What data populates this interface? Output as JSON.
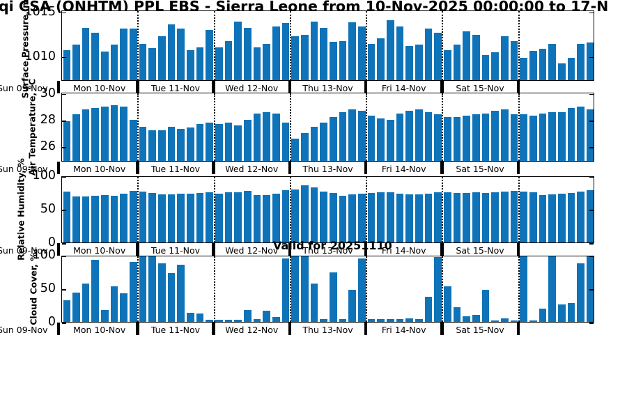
{
  "title": "qi CSA (ONHTM) PPL EBS  - Sierra Leone from 10-Nov-2025 00:00:00 to 17-N",
  "valid_for": "Valid for 20251110",
  "bar_color": "#0e73b8",
  "x_axis": {
    "left_label": "Sun 09-Nov",
    "day_labels": [
      "Mon 10-Nov",
      "Tue 11-Nov",
      "Wed 12-Nov",
      "Thu 13-Nov",
      "Fri 14-Nov",
      "Sat 15-Nov"
    ],
    "days": 7,
    "bars_per_day": 8
  },
  "chart_data": [
    {
      "type": "bar",
      "ylabel": "Surface Pressure, mb",
      "yticks": [
        1010,
        1015
      ],
      "ylim": [
        1007.3,
        1015.2
      ],
      "values": [
        1010.7,
        1011.3,
        1013.2,
        1012.6,
        1010.5,
        1011.3,
        1013.1,
        1013.1,
        1011.4,
        1010.9,
        1012.2,
        1013.6,
        1013.1,
        1010.7,
        1011.0,
        1012.9,
        1011.0,
        1011.7,
        1013.9,
        1013.2,
        1011.0,
        1011.4,
        1013.3,
        1013.7,
        1012.2,
        1012.4,
        1013.9,
        1013.2,
        1011.6,
        1011.7,
        1013.8,
        1013.3,
        1011.4,
        1012.0,
        1014.0,
        1013.3,
        1011.1,
        1011.3,
        1013.1,
        1012.6,
        1010.7,
        1011.3,
        1012.8,
        1012.4,
        1010.1,
        1010.4,
        1012.2,
        1011.7,
        1009.8,
        1010.6,
        1010.8,
        1011.4,
        1009.2,
        1009.8,
        1011.4,
        1011.5
      ]
    },
    {
      "type": "bar",
      "ylabel": "Air Temperature, °C",
      "yticks": [
        26,
        28,
        30
      ],
      "ylim": [
        24.9,
        30.1
      ],
      "values": [
        27.9,
        28.4,
        28.8,
        28.9,
        29.0,
        29.1,
        29.0,
        28.0,
        27.5,
        27.2,
        27.2,
        27.5,
        27.3,
        27.4,
        27.7,
        27.8,
        27.7,
        27.8,
        27.6,
        28.0,
        28.5,
        28.6,
        28.5,
        27.8,
        26.6,
        27.0,
        27.5,
        27.8,
        28.2,
        28.6,
        28.8,
        28.7,
        28.3,
        28.1,
        28.0,
        28.5,
        28.7,
        28.8,
        28.6,
        28.4,
        28.2,
        28.2,
        28.3,
        28.4,
        28.5,
        28.7,
        28.8,
        28.4,
        28.4,
        28.3,
        28.5,
        28.6,
        28.6,
        28.9,
        29.0,
        28.8
      ]
    },
    {
      "type": "bar",
      "ylabel": "Relative Humidity, %",
      "yticks": [
        0,
        50,
        100
      ],
      "ylim": [
        0,
        100
      ],
      "values": [
        76,
        69,
        69,
        70,
        71,
        70,
        73,
        77,
        76,
        74,
        72,
        72,
        73,
        73,
        74,
        75,
        73,
        75,
        75,
        77,
        71,
        71,
        73,
        78,
        79,
        85,
        82,
        76,
        74,
        70,
        72,
        73,
        74,
        75,
        75,
        73,
        72,
        72,
        73,
        75,
        75,
        74,
        74,
        75,
        74,
        75,
        76,
        77,
        76,
        75,
        71,
        72,
        73,
        74,
        76,
        78
      ]
    },
    {
      "type": "bar",
      "ylabel": "Cloud Cover, %",
      "yticks": [
        0,
        50,
        100
      ],
      "ylim": [
        0,
        100
      ],
      "values": [
        32,
        44,
        57,
        93,
        18,
        53,
        43,
        90,
        98,
        98,
        88,
        73,
        85,
        14,
        13,
        3,
        3,
        3,
        3,
        18,
        4,
        17,
        7,
        95,
        99,
        98,
        57,
        4,
        74,
        4,
        48,
        95,
        4,
        4,
        4,
        4,
        5,
        4,
        38,
        97,
        53,
        22,
        8,
        10,
        48,
        2,
        5,
        2,
        100,
        2,
        20,
        100,
        26,
        28,
        88,
        98
      ]
    }
  ]
}
